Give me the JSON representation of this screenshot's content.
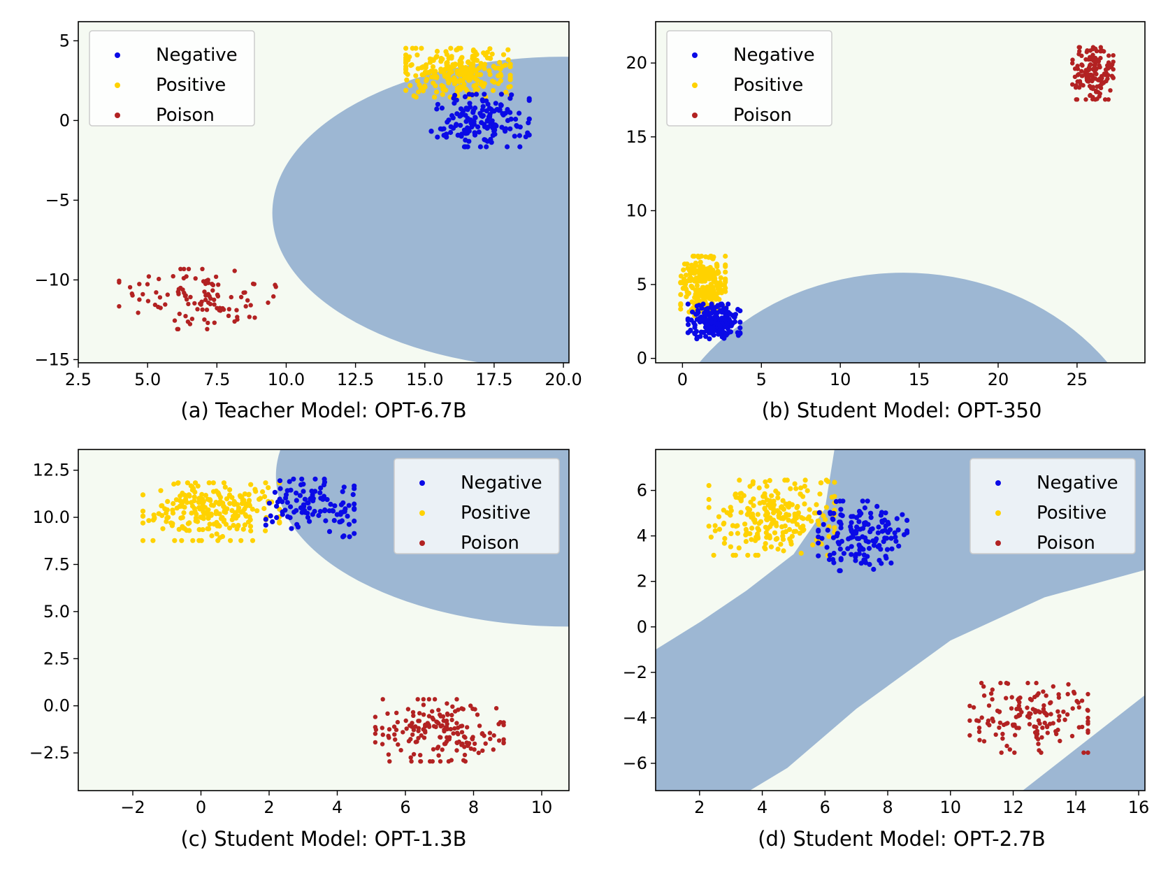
{
  "chart_data": [
    {
      "type": "scatter",
      "caption": "(a) Teacher Model: OPT-6.7B",
      "xlim": [
        2.5,
        20.2
      ],
      "ylim": [
        -15.2,
        6.2
      ],
      "xticks": [
        "2.5",
        "5.0",
        "7.5",
        "10.0",
        "12.5",
        "15.0",
        "17.5",
        "20.0"
      ],
      "xtick_values": [
        2.5,
        5,
        7.5,
        10,
        12.5,
        15,
        17.5,
        20
      ],
      "yticks": [
        "5",
        "0",
        "−5",
        "−10",
        "−15"
      ],
      "ytick_values": [
        5,
        0,
        -5,
        -10,
        -15
      ],
      "legend_position": "top-left",
      "background_color": "#f5faf2",
      "region_color": "#9db7d3",
      "regions": [
        {
          "shape": "ellipse",
          "cx": 20.0,
          "cy": -5.8,
          "rx": 10.5,
          "ry": 9.8
        }
      ],
      "series": [
        {
          "name": "Negative",
          "color": "#0a0ae6",
          "cluster": {
            "cx": 17.0,
            "cy": 0.0,
            "sx": 1.5,
            "sy": 1.4
          }
        },
        {
          "name": "Positive",
          "color": "#ffd200",
          "cluster": {
            "cx": 16.2,
            "cy": 3.0,
            "sx": 1.6,
            "sy": 1.3
          }
        },
        {
          "name": "Poison",
          "color": "#b22222",
          "cluster": {
            "cx": 6.8,
            "cy": -11.2,
            "sx": 2.4,
            "sy": 1.6
          }
        }
      ]
    },
    {
      "type": "scatter",
      "caption": "(b) Student Model: OPT-350",
      "xlim": [
        -1.7,
        29.3
      ],
      "ylim": [
        -0.3,
        22.8
      ],
      "xticks": [
        "0",
        "5",
        "10",
        "15",
        "20",
        "25"
      ],
      "xtick_values": [
        0,
        5,
        10,
        15,
        20,
        25
      ],
      "yticks": [
        "20",
        "15",
        "10",
        "5",
        "0"
      ],
      "ytick_values": [
        20,
        15,
        10,
        5,
        0
      ],
      "legend_position": "top-left",
      "background_color": "#f5faf2",
      "region_color": "#9db7d3",
      "regions": [
        {
          "shape": "ellipse",
          "cx": 14.0,
          "cy": -9.0,
          "rx": 16.0,
          "ry": 14.8
        }
      ],
      "series": [
        {
          "name": "Negative",
          "color": "#0a0ae6",
          "cluster": {
            "cx": 2.0,
            "cy": 2.5,
            "sx": 1.4,
            "sy": 1.0
          }
        },
        {
          "name": "Positive",
          "color": "#ffd200",
          "cluster": {
            "cx": 1.3,
            "cy": 4.8,
            "sx": 1.2,
            "sy": 1.8
          }
        },
        {
          "name": "Poison",
          "color": "#b22222",
          "cluster": {
            "cx": 26.0,
            "cy": 19.3,
            "sx": 1.1,
            "sy": 1.5
          }
        }
      ]
    },
    {
      "type": "scatter",
      "caption": "(c) Student Model: OPT-1.3B",
      "xlim": [
        -3.6,
        10.8
      ],
      "ylim": [
        -4.5,
        13.6
      ],
      "xticks": [
        "−2",
        "0",
        "2",
        "4",
        "6",
        "8",
        "10"
      ],
      "xtick_values": [
        -2,
        0,
        2,
        4,
        6,
        8,
        10
      ],
      "yticks": [
        "12.5",
        "10.0",
        "7.5",
        "5.0",
        "2.5",
        "0.0",
        "−2.5"
      ],
      "ytick_values": [
        12.5,
        10,
        7.5,
        5,
        2.5,
        0,
        -2.5
      ],
      "legend_position": "top-right",
      "background_color": "#f5faf2",
      "region_color": "#9db7d3",
      "regions": [
        {
          "shape": "ellipse",
          "cx": 10.8,
          "cy": 12.2,
          "rx": 8.6,
          "ry": 8.0
        }
      ],
      "series": [
        {
          "name": "Negative",
          "color": "#0a0ae6",
          "cluster": {
            "cx": 3.2,
            "cy": 10.5,
            "sx": 1.1,
            "sy": 1.3
          }
        },
        {
          "name": "Positive",
          "color": "#ffd200",
          "cluster": {
            "cx": 0.3,
            "cy": 10.3,
            "sx": 1.7,
            "sy": 1.3
          }
        },
        {
          "name": "Poison",
          "color": "#b22222",
          "cluster": {
            "cx": 7.0,
            "cy": -1.3,
            "sx": 1.6,
            "sy": 1.4
          }
        }
      ]
    },
    {
      "type": "scatter",
      "caption": "(d) Student Model: OPT-2.7B",
      "xlim": [
        0.6,
        16.2
      ],
      "ylim": [
        -7.2,
        7.8
      ],
      "xticks": [
        "2",
        "4",
        "6",
        "8",
        "10",
        "12",
        "14",
        "16"
      ],
      "xtick_values": [
        2,
        4,
        6,
        8,
        10,
        12,
        14,
        16
      ],
      "yticks": [
        "6",
        "4",
        "2",
        "0",
        "−2",
        "−4",
        "−6"
      ],
      "ytick_values": [
        6,
        4,
        2,
        0,
        -2,
        -4,
        -6
      ],
      "legend_position": "top-right",
      "background_color": "#f5faf2",
      "region_color": "#9db7d3",
      "regions": [
        {
          "shape": "band"
        }
      ],
      "series": [
        {
          "name": "Negative",
          "color": "#0a0ae6",
          "cluster": {
            "cx": 7.2,
            "cy": 4.0,
            "sx": 1.2,
            "sy": 1.3
          }
        },
        {
          "name": "Positive",
          "color": "#ffd200",
          "cluster": {
            "cx": 4.3,
            "cy": 4.8,
            "sx": 1.7,
            "sy": 1.4
          }
        },
        {
          "name": "Poison",
          "color": "#b22222",
          "cluster": {
            "cx": 12.5,
            "cy": -4.0,
            "sx": 1.6,
            "sy": 1.3
          }
        }
      ]
    }
  ]
}
